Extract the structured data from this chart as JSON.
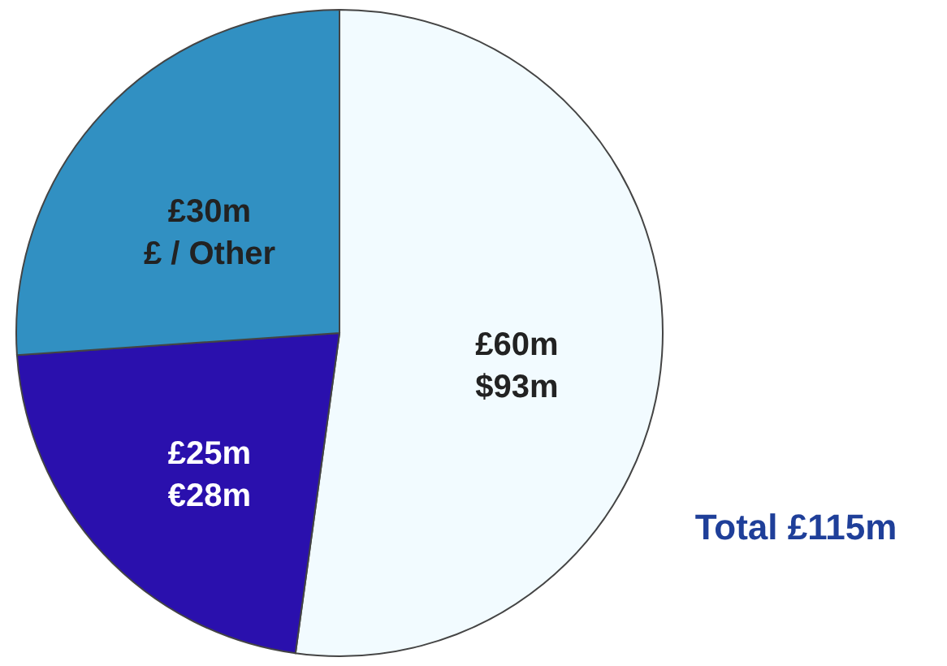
{
  "chart_data": {
    "type": "pie",
    "categories": [
      "£60m\n$93m",
      "£25m\n€28m",
      "£30m\n£ / Other"
    ],
    "values": [
      60,
      25,
      30
    ],
    "colors": [
      "#f2fbff",
      "#2a10ad",
      "#3190c2"
    ],
    "annotations": [
      "Total £115m"
    ]
  }
}
